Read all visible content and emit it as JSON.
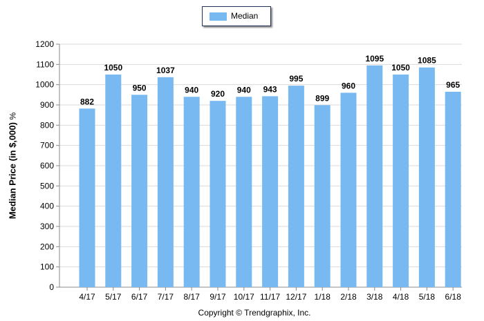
{
  "chart_data": {
    "type": "bar",
    "title": "",
    "xlabel": "",
    "ylabel": "Median Price (in $,000)",
    "ylabel_unit": "%",
    "ylim": [
      0,
      1200
    ],
    "ytick_step": 100,
    "grid": true,
    "legend_position": "top-center",
    "categories": [
      "4/17",
      "5/17",
      "6/17",
      "7/17",
      "8/17",
      "9/17",
      "10/17",
      "11/17",
      "12/17",
      "1/18",
      "2/18",
      "3/18",
      "4/18",
      "5/18",
      "6/18"
    ],
    "series": [
      {
        "name": "Median",
        "color": "#78b9f2",
        "values": [
          882,
          1050,
          950,
          1037,
          940,
          920,
          940,
          943,
          995,
          899,
          960,
          1095,
          1050,
          1085,
          965
        ]
      }
    ]
  },
  "footer": "Copyright © Trendgraphix, Inc."
}
